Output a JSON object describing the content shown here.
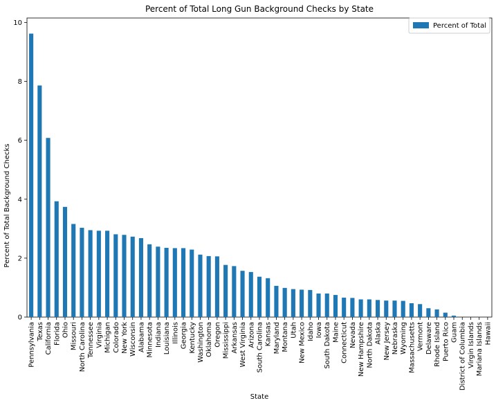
{
  "chart_data": {
    "type": "bar",
    "title": "Percent of Total Long Gun Background Checks by State",
    "xlabel": "State",
    "ylabel": "Percent of Total Background Checks",
    "ylim": [
      0,
      10.15
    ],
    "yticks": [
      0,
      2,
      4,
      6,
      8,
      10
    ],
    "legend": {
      "position": "top-right"
    },
    "grid": false,
    "categories": [
      "Pennsylvania",
      "Texas",
      "California",
      "Florida",
      "Ohio",
      "Missouri",
      "North Carolina",
      "Tennessee",
      "Virginia",
      "Michigan",
      "Colorado",
      "New York",
      "Wisconsin",
      "Alabama",
      "Minnesota",
      "Indiana",
      "Louisiana",
      "Illinois",
      "Georgia",
      "Kentucky",
      "Washington",
      "Oklahoma",
      "Oregon",
      "Mississippi",
      "Arkansas",
      "West Virginia",
      "Arizona",
      "South Carolina",
      "Kansas",
      "Maryland",
      "Montana",
      "Utah",
      "New Mexico",
      "Idaho",
      "Iowa",
      "South Dakota",
      "Maine",
      "Connecticut",
      "Nevada",
      "New Hampshire",
      "North Dakota",
      "Alaska",
      "New Jersey",
      "Nebraska",
      "Wyoming",
      "Massachusetts",
      "Vermont",
      "Delaware",
      "Rhode Island",
      "Puerto Rico",
      "Guam",
      "District of Columbia",
      "Virgin Islands",
      "Mariana Islands",
      "Hawaii"
    ],
    "series": [
      {
        "name": "Percent of Total",
        "color": "#1f77b4",
        "values": [
          9.62,
          7.86,
          6.08,
          3.93,
          3.74,
          3.16,
          3.03,
          2.95,
          2.93,
          2.93,
          2.81,
          2.79,
          2.73,
          2.68,
          2.47,
          2.39,
          2.35,
          2.34,
          2.34,
          2.29,
          2.12,
          2.07,
          2.06,
          1.77,
          1.73,
          1.57,
          1.53,
          1.37,
          1.32,
          1.06,
          0.99,
          0.95,
          0.93,
          0.92,
          0.8,
          0.8,
          0.75,
          0.66,
          0.65,
          0.6,
          0.6,
          0.58,
          0.56,
          0.56,
          0.55,
          0.47,
          0.44,
          0.3,
          0.26,
          0.15,
          0.05,
          0.0,
          0.0,
          0.0,
          0.0
        ]
      }
    ]
  }
}
